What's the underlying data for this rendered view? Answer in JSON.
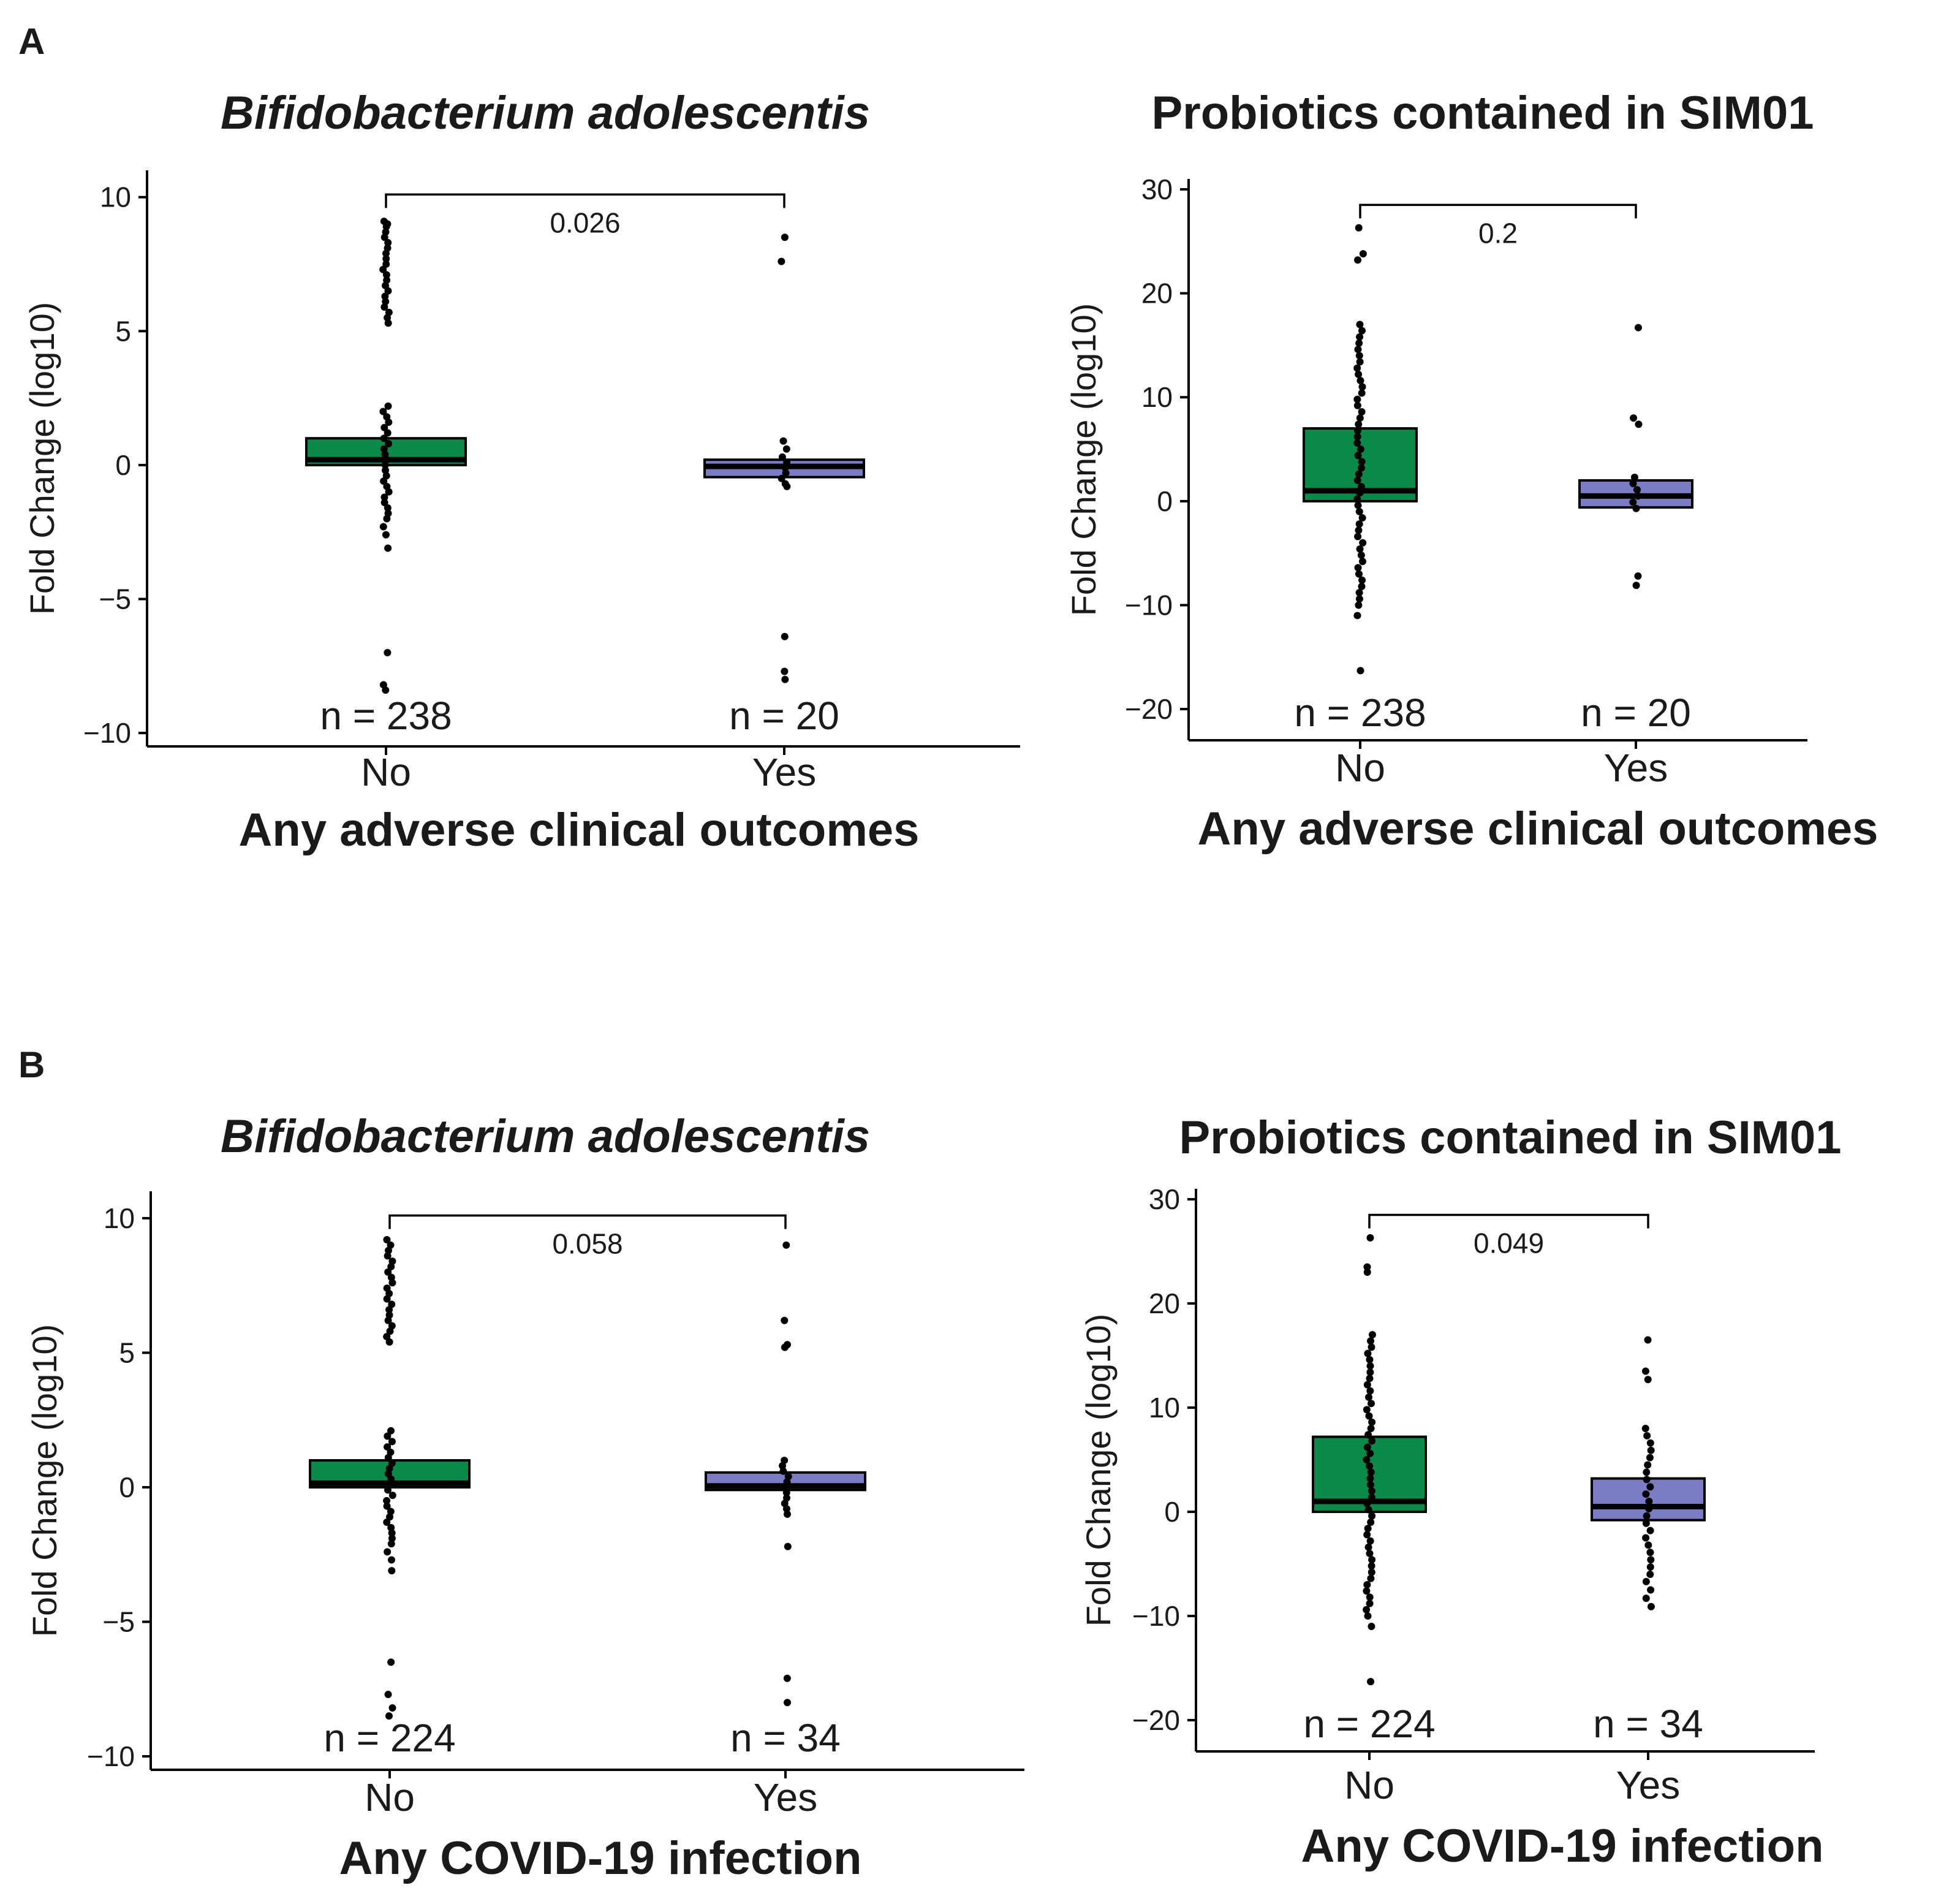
{
  "panel_letters": {
    "a": "A",
    "b": "B"
  },
  "colors": {
    "no": "#0a8a48",
    "yes": "#7c7cc4"
  },
  "chart_data": [
    {
      "type": "box",
      "title": "Bifidobacterium adolescentis",
      "title_italic": true,
      "xlabel": "Any adverse clinical outcomes",
      "ylabel": "Fold Change (log10)",
      "ylim": [
        -10.5,
        11
      ],
      "yticks": [
        -10,
        -5,
        0,
        5,
        10
      ],
      "ytick_labels": [
        "−10",
        "−5",
        "0",
        "5",
        "10"
      ],
      "categories": [
        "No",
        "Yes"
      ],
      "counts": [
        "n =  238",
        "n = 20"
      ],
      "boxes": [
        {
          "q1": 0.0,
          "median": 0.2,
          "q3": 1.0,
          "color": "no"
        },
        {
          "q1": -0.45,
          "median": -0.05,
          "q3": 0.2,
          "color": "yes"
        }
      ],
      "points": [
        [
          9.1,
          9.0,
          8.9,
          8.7,
          8.5,
          8.3,
          8.1,
          7.9,
          7.7,
          7.5,
          7.3,
          7.1,
          6.9,
          6.7,
          6.5,
          6.3,
          6.1,
          5.9,
          5.7,
          5.5,
          5.3,
          2.2,
          2.0,
          1.8,
          1.6,
          1.4,
          1.2,
          1.0,
          0.8,
          0.6,
          0.4,
          0.2,
          0.0,
          -0.2,
          -0.4,
          -0.6,
          -0.8,
          -1.0,
          -1.2,
          -1.4,
          -1.6,
          -1.8,
          -2.0,
          -2.3,
          -2.6,
          -3.1,
          -7.0,
          -8.2,
          -8.4
        ],
        [
          8.5,
          7.6,
          0.9,
          0.6,
          0.3,
          0.1,
          -0.1,
          -0.3,
          -0.5,
          -0.7,
          -0.8,
          -6.4,
          -7.7,
          -8.0
        ]
      ],
      "comparison": {
        "from": 0,
        "to": 1,
        "y": 10.1,
        "label": "0.026"
      }
    },
    {
      "type": "box",
      "title": "Probiotics contained in SIM01",
      "title_italic": false,
      "xlabel": "Any adverse clinical outcomes",
      "ylabel": "Fold Change (log10)",
      "ylim": [
        -23,
        31
      ],
      "yticks": [
        -20,
        -10,
        0,
        10,
        20,
        30
      ],
      "ytick_labels": [
        "−20",
        "−10",
        "0",
        "10",
        "20",
        "30"
      ],
      "categories": [
        "No",
        "Yes"
      ],
      "counts": [
        "n =  238",
        "n = 20"
      ],
      "boxes": [
        {
          "q1": 0.0,
          "median": 1.0,
          "q3": 7.0,
          "color": "no"
        },
        {
          "q1": -0.6,
          "median": 0.5,
          "q3": 2.0,
          "color": "yes"
        }
      ],
      "points": [
        [
          26.3,
          23.8,
          23.2,
          17.0,
          16.4,
          15.8,
          15.2,
          14.6,
          14.0,
          13.4,
          12.8,
          12.2,
          11.6,
          11.0,
          10.4,
          9.8,
          9.2,
          8.6,
          8.0,
          7.4,
          6.8,
          6.2,
          5.6,
          5.0,
          4.4,
          3.8,
          3.2,
          2.6,
          2.0,
          1.4,
          0.8,
          0.2,
          -0.4,
          -1.0,
          -1.6,
          -2.2,
          -2.8,
          -3.4,
          -4.0,
          -4.6,
          -5.2,
          -5.8,
          -6.4,
          -7.0,
          -7.6,
          -8.2,
          -8.8,
          -9.4,
          -10.0,
          -11.0,
          -16.3
        ],
        [
          16.7,
          8.0,
          7.4,
          2.3,
          1.7,
          1.1,
          0.5,
          -0.1,
          -0.7,
          -7.2,
          -8.1
        ]
      ],
      "comparison": {
        "from": 0,
        "to": 1,
        "y": 28.5,
        "label": "0.2"
      }
    },
    {
      "type": "box",
      "title": "Bifidobacterium adolescentis",
      "title_italic": true,
      "xlabel": "Any COVID-19 infection",
      "ylabel": "Fold Change (log10)",
      "ylim": [
        -10.5,
        11
      ],
      "yticks": [
        -10,
        -5,
        0,
        5,
        10
      ],
      "ytick_labels": [
        "−10",
        "−5",
        "0",
        "5",
        "10"
      ],
      "categories": [
        "No",
        "Yes"
      ],
      "counts": [
        "n =  224",
        "n = 34"
      ],
      "boxes": [
        {
          "q1": 0.0,
          "median": 0.15,
          "q3": 1.0,
          "color": "no"
        },
        {
          "q1": -0.1,
          "median": 0.05,
          "q3": 0.55,
          "color": "yes"
        }
      ],
      "points": [
        [
          9.2,
          9.0,
          8.8,
          8.6,
          8.4,
          8.2,
          8.0,
          7.8,
          7.6,
          7.4,
          7.2,
          7.0,
          6.8,
          6.6,
          6.4,
          6.2,
          6.0,
          5.8,
          5.6,
          5.4,
          2.1,
          1.9,
          1.7,
          1.5,
          1.3,
          1.1,
          0.9,
          0.7,
          0.5,
          0.3,
          0.1,
          -0.1,
          -0.3,
          -0.5,
          -0.7,
          -0.9,
          -1.1,
          -1.3,
          -1.5,
          -1.7,
          -1.9,
          -2.1,
          -2.4,
          -2.7,
          -3.1,
          -6.5,
          -7.7,
          -8.2,
          -8.5
        ],
        [
          9.0,
          6.2,
          5.3,
          5.2,
          1.0,
          0.8,
          0.6,
          0.4,
          0.2,
          0.0,
          -0.2,
          -0.4,
          -0.6,
          -0.8,
          -1.0,
          -2.2,
          -7.1,
          -8.0
        ]
      ],
      "comparison": {
        "from": 0,
        "to": 1,
        "y": 10.1,
        "label": "0.058"
      }
    },
    {
      "type": "box",
      "title": "Probiotics contained in SIM01",
      "title_italic": false,
      "xlabel": "Any COVID-19 infection",
      "ylabel": "Fold Change (log10)",
      "ylim": [
        -23,
        31
      ],
      "yticks": [
        -20,
        -10,
        0,
        10,
        20,
        30
      ],
      "ytick_labels": [
        "−20",
        "−10",
        "0",
        "10",
        "20",
        "30"
      ],
      "categories": [
        "No",
        "Yes"
      ],
      "counts": [
        "n =  224",
        "n = 34"
      ],
      "boxes": [
        {
          "q1": 0.0,
          "median": 1.0,
          "q3": 7.2,
          "color": "no"
        },
        {
          "q1": -0.8,
          "median": 0.5,
          "q3": 3.2,
          "color": "yes"
        }
      ],
      "points": [
        [
          26.3,
          23.5,
          23.0,
          17.0,
          16.4,
          15.8,
          15.2,
          14.6,
          14.0,
          13.4,
          12.8,
          12.2,
          11.6,
          11.0,
          10.4,
          9.8,
          9.2,
          8.6,
          8.0,
          7.4,
          6.8,
          6.2,
          5.6,
          5.0,
          4.4,
          3.8,
          3.2,
          2.6,
          2.0,
          1.4,
          0.8,
          0.2,
          -0.4,
          -1.0,
          -1.6,
          -2.2,
          -2.8,
          -3.4,
          -4.0,
          -4.6,
          -5.2,
          -5.8,
          -6.4,
          -7.0,
          -7.6,
          -8.2,
          -8.8,
          -9.4,
          -10.0,
          -11.0,
          -16.3
        ],
        [
          16.5,
          13.5,
          12.7,
          8.0,
          7.3,
          6.6,
          5.9,
          5.2,
          4.5,
          3.8,
          3.1,
          2.4,
          1.7,
          1.0,
          0.3,
          -0.4,
          -1.1,
          -1.8,
          -2.5,
          -3.2,
          -3.9,
          -4.6,
          -5.3,
          -6.0,
          -6.7,
          -7.5,
          -8.3,
          -9.1
        ]
      ],
      "comparison": {
        "from": 0,
        "to": 1,
        "y": 28.5,
        "label": "0.049"
      }
    }
  ]
}
